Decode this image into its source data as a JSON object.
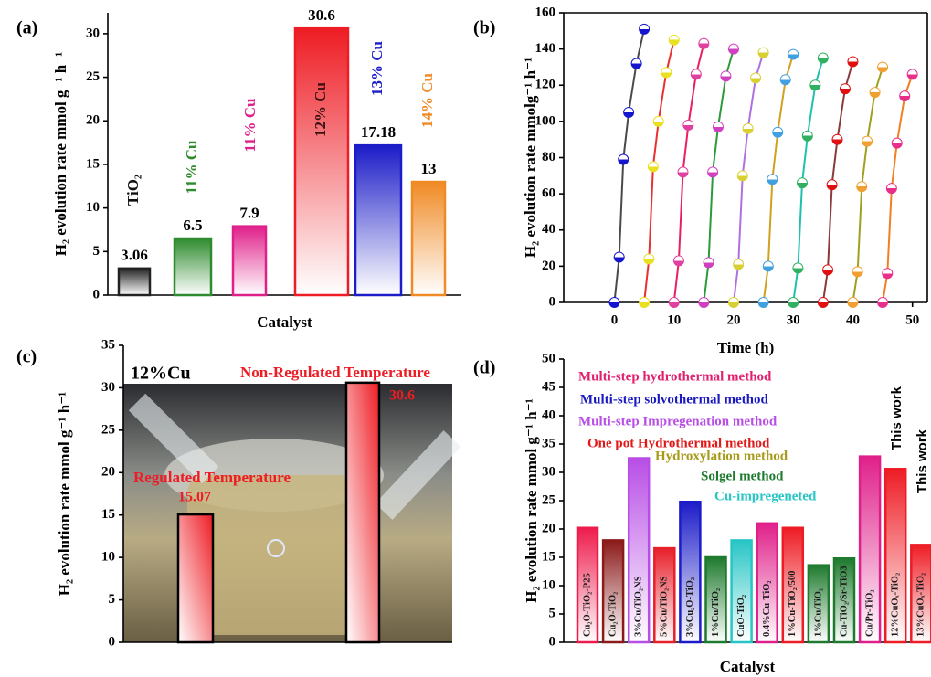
{
  "chart_data": [
    {
      "type": "bar",
      "panel_label": "(a)",
      "y_label": "H₂ evolution rate mmol g⁻¹ h⁻¹",
      "x_label": "Catalyst",
      "categories": [
        "TiO₂",
        "11% Cu",
        "11% Cu",
        "12% Cu",
        "13% Cu",
        "14% Cu"
      ],
      "values": [
        3.06,
        6.5,
        7.9,
        30.6,
        17.18,
        13
      ],
      "colors": [
        "#222222",
        "#2e8b2e",
        "#e0208a",
        "#ee1c24",
        "#1c1cc8",
        "#f08a24"
      ],
      "label_colors": [
        "#111111",
        "#2e8b2e",
        "#e0208a",
        "#3a1010",
        "#1c1cc8",
        "#f08a24"
      ],
      "ylim": [
        0,
        32.4
      ],
      "yticks": [
        0,
        5,
        10,
        15,
        20,
        25,
        30
      ]
    },
    {
      "type": "line",
      "panel_label": "(b)",
      "y_label": "H₂ evolution rate mmolg⁻¹ h⁻¹",
      "x_label": "Time (h)",
      "series": [
        {
          "color": "#4a4a4a",
          "marker_color": "#1515d0",
          "x": [
            0,
            0.8,
            1.5,
            2.4,
            3.7,
            5
          ],
          "values": [
            0,
            25,
            79,
            105,
            132,
            151
          ]
        },
        {
          "color": "#e83030",
          "marker_color": "#e8e020",
          "x": [
            5,
            5.8,
            6.5,
            7.4,
            8.7,
            10
          ],
          "values": [
            0,
            24,
            75,
            100,
            127,
            145
          ]
        },
        {
          "color": "#e82060",
          "marker_color": "#e040a0",
          "x": [
            10,
            10.8,
            11.5,
            12.4,
            13.7,
            15
          ],
          "values": [
            0,
            23,
            72,
            98,
            126,
            143
          ]
        },
        {
          "color": "#2a9a3a",
          "marker_color": "#d040c0",
          "x": [
            15,
            15.8,
            16.5,
            17.4,
            18.7,
            20
          ],
          "values": [
            0,
            22,
            72,
            97,
            125,
            140
          ]
        },
        {
          "color": "#b070e0",
          "marker_color": "#d8d030",
          "x": [
            20,
            20.8,
            21.5,
            22.4,
            23.7,
            25
          ],
          "values": [
            0,
            21,
            70,
            96,
            124,
            138
          ]
        },
        {
          "color": "#d0a020",
          "marker_color": "#40a0e0",
          "x": [
            25,
            25.8,
            26.5,
            27.4,
            28.7,
            30
          ],
          "values": [
            0,
            20,
            68,
            94,
            123,
            137
          ]
        },
        {
          "color": "#20c0b0",
          "marker_color": "#30b060",
          "x": [
            30,
            30.8,
            31.5,
            32.4,
            33.7,
            35
          ],
          "values": [
            0,
            19,
            66,
            92,
            120,
            135
          ]
        },
        {
          "color": "#8a3a3a",
          "marker_color": "#e01010",
          "x": [
            35,
            35.8,
            36.5,
            37.4,
            38.7,
            40
          ],
          "values": [
            0,
            18,
            65,
            90,
            118,
            133
          ]
        },
        {
          "color": "#a0a020",
          "marker_color": "#f0a030",
          "x": [
            40,
            40.8,
            41.5,
            42.4,
            43.7,
            45
          ],
          "values": [
            0,
            17,
            64,
            89,
            116,
            130
          ]
        },
        {
          "color": "#f08020",
          "marker_color": "#e8308a",
          "x": [
            45,
            45.8,
            46.5,
            47.4,
            48.7,
            50
          ],
          "values": [
            0,
            16,
            63,
            88,
            114,
            126
          ]
        }
      ],
      "xlim": [
        -8.5,
        52.5
      ],
      "xticks": [
        0,
        10,
        20,
        30,
        40,
        50
      ],
      "ylim": [
        0,
        160
      ],
      "yticks": [
        0,
        20,
        40,
        60,
        80,
        100,
        120,
        140,
        160
      ]
    },
    {
      "type": "bar",
      "panel_label": "(c)",
      "y_label": "H₂ evolution rate mmol g⁻¹ h⁻¹",
      "inset_label": "12%Cu",
      "categories": [
        "Regulated Temperature",
        "Non-Regulated Temperature"
      ],
      "values": [
        15.07,
        30.6
      ],
      "colors": [
        "#ee1c24",
        "#ee1c24"
      ],
      "label_colors": [
        "#ee1c24",
        "#ee1c24"
      ],
      "ylim": [
        0,
        35
      ],
      "yticks": [
        0,
        5,
        10,
        15,
        20,
        25,
        30,
        35
      ]
    },
    {
      "type": "bar",
      "panel_label": "(d)",
      "y_label": "H₂ evolution rate mmol g⁻¹ h⁻¹",
      "x_label": "Catalyst",
      "categories": [
        "Cu₂O-TiO₂-P25",
        "Cu₂O-TiO₂",
        "3%Cu/TiO₂NS",
        "5%Cu/TiO₂NS",
        "3%Cu₂O-TiO₂",
        "1%Cu/TiO₂",
        "CuO-TiO₂",
        "0.4%Cu-TiO₂",
        "1%Cu-TiO₂/500",
        "1%Cu/TiO₂",
        "Cu-TiO₂/Sr-TiO3",
        "Cu/Pr-TiO₂",
        "12%CuOₓ-TiO₂",
        "13%CuOₓ-TiO₂"
      ],
      "values": [
        20.2,
        18,
        32.5,
        16.6,
        24.8,
        15,
        18,
        21,
        20.2,
        13.6,
        14.8,
        32.8,
        30.6,
        17.2
      ],
      "colors": [
        "#ee1c4c",
        "#8b1a1a",
        "#b84ee6",
        "#e8202a",
        "#1c1cc8",
        "#1e7a2e",
        "#28c5c5",
        "#e0208a",
        "#ee1c24",
        "#1e7a2e",
        "#1e7a2e",
        "#e0208a",
        "#ee1c24",
        "#ee1c24"
      ],
      "method_labels": [
        {
          "text": "Multi-step hydrothermal method",
          "color": "#e0206f"
        },
        {
          "text": "Multi-step solvothermal method",
          "color": "#1a1ac0"
        },
        {
          "text": "Multi-step Impregenation method",
          "color": "#b84ee6"
        },
        {
          "text": "One pot Hydrothermal method",
          "color": "#e01818"
        },
        {
          "text": "Hydroxylation method",
          "color": "#a79a18"
        },
        {
          "text": "Solgel method",
          "color": "#1e7a2e"
        },
        {
          "text": "Cu-impregeneted",
          "color": "#28c5c5"
        }
      ],
      "annotations": [
        "This work",
        "This work"
      ],
      "ylim": [
        0,
        50
      ],
      "yticks": [
        0,
        5,
        10,
        15,
        20,
        25,
        30,
        35,
        40,
        45,
        50
      ]
    }
  ]
}
